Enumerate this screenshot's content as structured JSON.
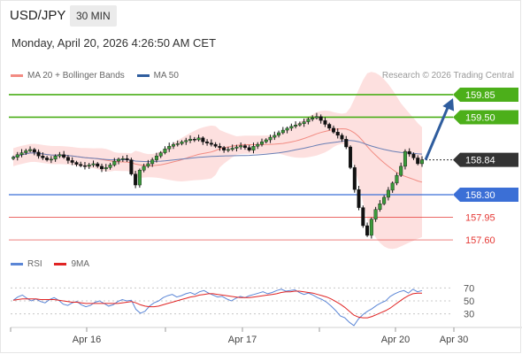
{
  "header": {
    "symbol": "USD/JPY",
    "timeframe": "30 MIN"
  },
  "timestamp": "Monday, April 20, 2026 4:26:50 AM CET",
  "price_legend": {
    "items": [
      {
        "label": "MA 20 + Bollinger Bands",
        "color": "#f28b82"
      },
      {
        "label": "MA 50",
        "color": "#2f5d9e"
      }
    ],
    "credit": "Research © 2026 Trading Central"
  },
  "rsi_legend": {
    "items": [
      {
        "label": "RSI",
        "color": "#5b86d6"
      },
      {
        "label": "9MA",
        "color": "#e02424"
      }
    ]
  },
  "chart_data": [
    {
      "type": "line",
      "subtype": "candlestick",
      "title": "USD/JPY",
      "y_range": [
        157.45,
        160.0
      ],
      "x_ticks": [
        "Apr 16",
        "Apr 17",
        "Apr 20",
        "Apr 30"
      ],
      "current_price": "158.84",
      "levels": [
        {
          "value": "159.85",
          "kind": "resistance",
          "color": "#4caf1a"
        },
        {
          "value": "159.50",
          "kind": "resistance",
          "color": "#4caf1a"
        },
        {
          "value": "158.30",
          "kind": "support",
          "color": "#3b6fd6"
        },
        {
          "value": "157.95",
          "kind": "support",
          "color": "#e53935"
        },
        {
          "value": "157.60",
          "kind": "support",
          "color": "#e53935"
        }
      ],
      "forecast_arrow": {
        "from": 158.84,
        "to": 159.85,
        "color": "#2f5d9e"
      },
      "close_series": [
        158.88,
        158.92,
        158.95,
        158.98,
        159.0,
        158.96,
        158.9,
        158.87,
        158.84,
        158.85,
        158.9,
        158.92,
        158.88,
        158.83,
        158.8,
        158.77,
        158.75,
        158.74,
        158.76,
        158.78,
        158.74,
        158.7,
        158.72,
        158.76,
        158.82,
        158.85,
        158.86,
        158.84,
        158.62,
        158.45,
        158.68,
        158.74,
        158.78,
        158.84,
        158.9,
        158.95,
        159.01,
        159.05,
        159.08,
        159.09,
        159.12,
        159.14,
        159.16,
        159.15,
        159.18,
        159.12,
        159.1,
        159.08,
        159.05,
        159.03,
        158.99,
        159.0,
        159.02,
        159.04,
        159.06,
        159.03,
        158.99,
        159.05,
        159.08,
        159.12,
        159.15,
        159.19,
        159.22,
        159.26,
        159.3,
        159.33,
        159.36,
        159.38,
        159.4,
        159.43,
        159.47,
        159.49,
        159.51,
        159.45,
        159.39,
        159.33,
        159.27,
        159.22,
        159.16,
        159.04,
        158.72,
        158.38,
        158.1,
        157.82,
        157.67,
        157.92,
        158.07,
        158.16,
        158.26,
        158.37,
        158.48,
        158.6,
        158.74,
        158.97,
        158.93,
        158.87,
        158.78,
        158.84
      ]
    },
    {
      "type": "line",
      "title": "RSI",
      "y_ticks": [
        "70",
        "50",
        "30"
      ],
      "series": [
        {
          "name": "RSI",
          "values": [
            51,
            56,
            59,
            54,
            50,
            53,
            49,
            47,
            52,
            55,
            51,
            45,
            43,
            47,
            49,
            44,
            41,
            43,
            48,
            50,
            46,
            42,
            44,
            49,
            52,
            50,
            51,
            37,
            31,
            34,
            42,
            47,
            50,
            55,
            58,
            60,
            56,
            58,
            61,
            63,
            60,
            64,
            66,
            62,
            59,
            56,
            57,
            53,
            50,
            54,
            57,
            55,
            58,
            60,
            62,
            64,
            61,
            63,
            66,
            68,
            65,
            66,
            67,
            63,
            60,
            62,
            59,
            55,
            52,
            48,
            42,
            35,
            27,
            24,
            17,
            12,
            22,
            29,
            34,
            38,
            43,
            47,
            50,
            57,
            61,
            64,
            66,
            62,
            68,
            64,
            66
          ]
        },
        {
          "name": "9MA",
          "values": [
            51,
            52,
            53,
            53,
            53,
            53,
            52,
            52,
            52,
            52,
            51,
            50,
            49,
            48,
            48,
            47,
            46,
            46,
            46,
            46,
            46,
            46,
            46,
            46,
            47,
            48,
            49,
            47,
            44,
            42,
            41,
            41,
            42,
            44,
            46,
            48,
            50,
            52,
            54,
            56,
            57,
            59,
            60,
            61,
            61,
            60,
            59,
            58,
            57,
            56,
            55,
            55,
            55,
            56,
            57,
            58,
            59,
            60,
            61,
            63,
            64,
            64,
            65,
            65,
            64,
            63,
            62,
            60,
            58,
            56,
            53,
            49,
            45,
            40,
            34,
            28,
            25,
            24,
            24,
            26,
            29,
            32,
            35,
            39,
            44,
            49,
            54,
            58,
            61,
            62,
            62
          ]
        }
      ]
    }
  ]
}
